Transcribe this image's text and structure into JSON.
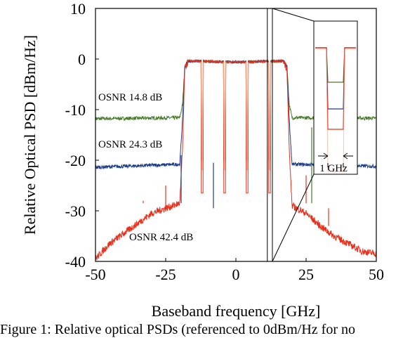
{
  "chart_data": {
    "type": "line",
    "xlabel": "Baseband frequency [GHz]",
    "ylabel": "Relative Optical PSD [dBm/Hz]",
    "xlim": [
      -50,
      50
    ],
    "ylim": [
      -40,
      10
    ],
    "xticks": [
      -50,
      -25,
      0,
      25,
      50
    ],
    "yticks": [
      10,
      0,
      -10,
      -20,
      -30,
      -40
    ],
    "grid": false,
    "legend": "none",
    "series": [
      {
        "name": "OSNR 14.8 dB",
        "color": "#4a7a2c",
        "floor": -11.8,
        "points": [
          [
            -50,
            -11.8
          ],
          [
            -20,
            -11.6
          ],
          [
            -19,
            -9
          ],
          [
            -18.2,
            -1.5
          ],
          [
            -17,
            -0.4
          ],
          [
            0,
            -0.6
          ],
          [
            17,
            -0.4
          ],
          [
            18.2,
            -1.5
          ],
          [
            19,
            -9
          ],
          [
            20,
            -11.6
          ],
          [
            50,
            -11.7
          ]
        ]
      },
      {
        "name": "OSNR 24.3 dB",
        "color": "#1f3f8a",
        "floor": -21.2,
        "points": [
          [
            -50,
            -21.4
          ],
          [
            -20,
            -20.8
          ],
          [
            -19,
            -12
          ],
          [
            -18.2,
            -1.5
          ],
          [
            -17,
            -0.4
          ],
          [
            0,
            -0.6
          ],
          [
            17,
            -0.4
          ],
          [
            18.2,
            -1.5
          ],
          [
            19,
            -12
          ],
          [
            20,
            -20.8
          ],
          [
            50,
            -21.2
          ]
        ]
      },
      {
        "name": "OSNR 42.4 dB",
        "color": "#e8321e",
        "floor": -28.5,
        "points": [
          [
            -50,
            -39.5
          ],
          [
            -45,
            -36.5
          ],
          [
            -40,
            -34.5
          ],
          [
            -35,
            -32.5
          ],
          [
            -30,
            -30.5
          ],
          [
            -25,
            -29.5
          ],
          [
            -20,
            -28.5
          ],
          [
            -19,
            -18
          ],
          [
            -18.2,
            -2
          ],
          [
            -17,
            -0.4
          ],
          [
            0,
            -0.6
          ],
          [
            17,
            -0.4
          ],
          [
            18.2,
            -2
          ],
          [
            19,
            -18
          ],
          [
            20,
            -29
          ],
          [
            25,
            -30.5
          ],
          [
            30,
            -33
          ],
          [
            35,
            -35
          ],
          [
            40,
            -36.5
          ],
          [
            45,
            -38
          ],
          [
            50,
            -38.5
          ]
        ]
      }
    ],
    "notches": [
      -12,
      -4,
      4,
      12
    ],
    "annotations": [
      {
        "text": "OSNR 14.8 dB",
        "x": -49,
        "y": -8.2
      },
      {
        "text": "OSNR 24.3 dB",
        "x": -49,
        "y": -17.5
      },
      {
        "text": "OSNR 42.4 dB",
        "x": -38,
        "y": -35.8
      },
      {
        "text": "1 GHz",
        "x": 0,
        "y": 0
      }
    ]
  },
  "caption": "Figure 1: Relative optical PSDs (referenced to 0dBm/Hz for no"
}
